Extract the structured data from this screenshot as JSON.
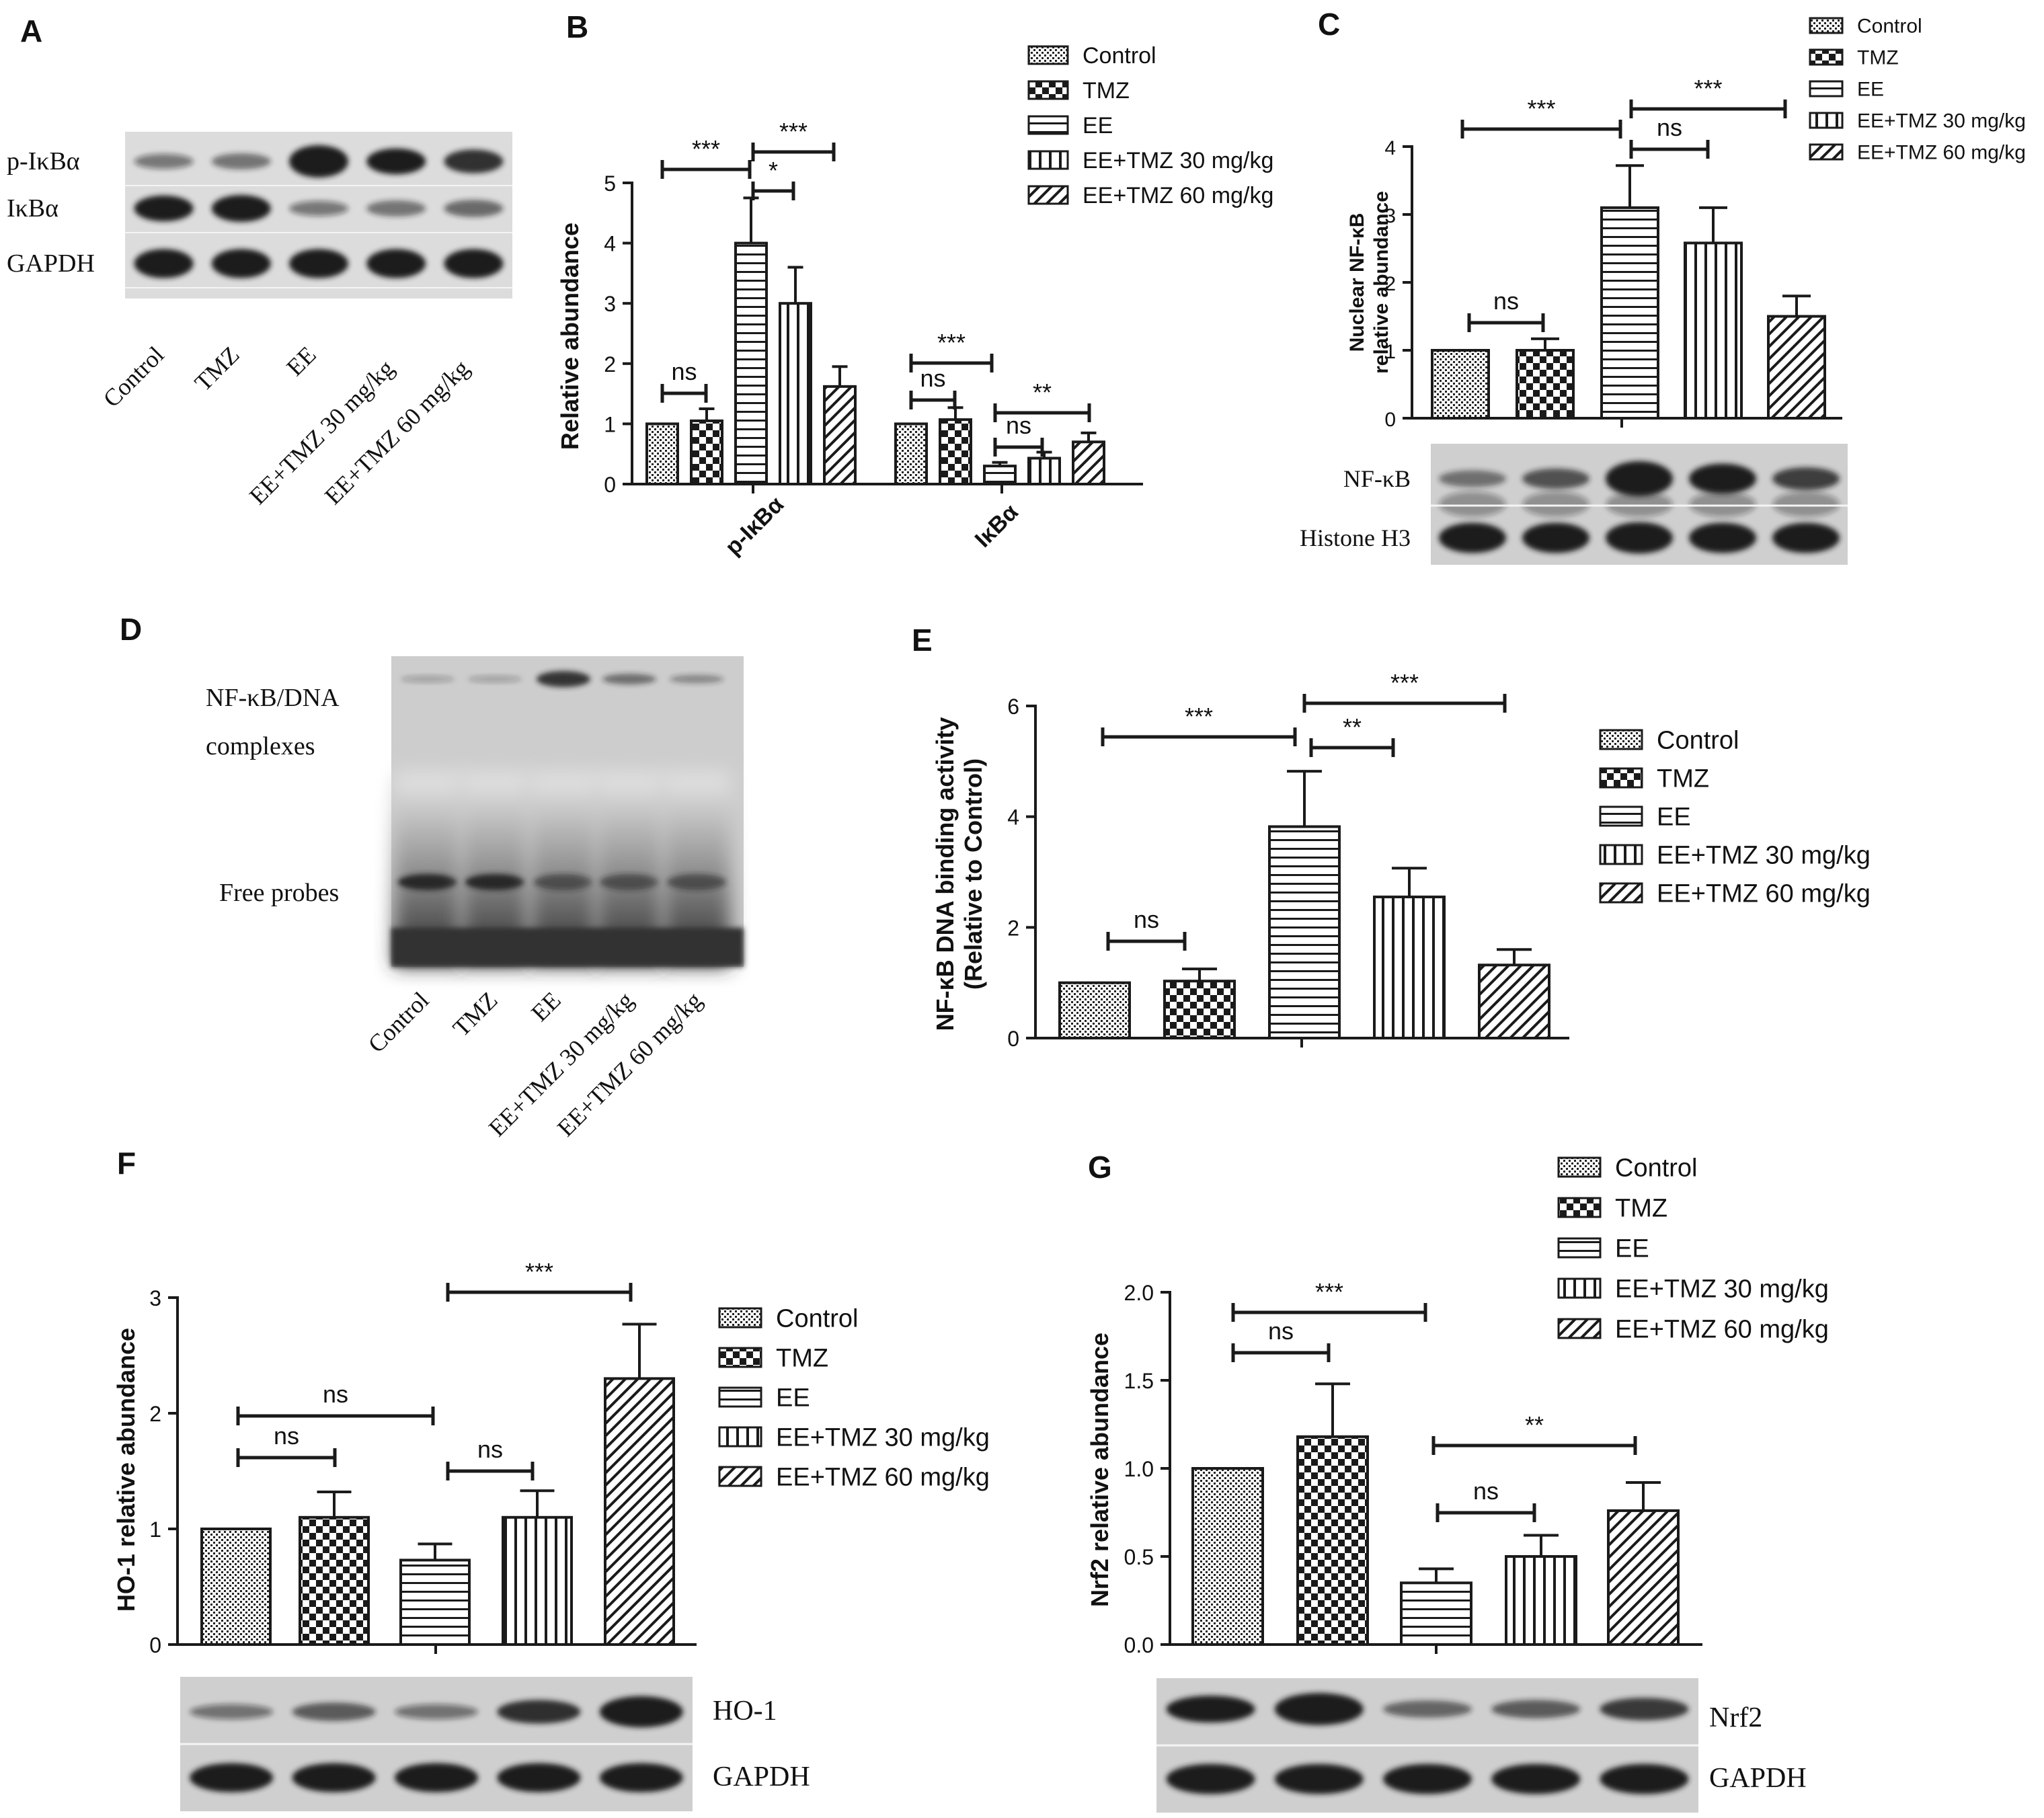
{
  "legend_groups": [
    "Control",
    "TMZ",
    "EE",
    "EE+TMZ 30 mg/kg",
    "EE+TMZ 60 mg/kg"
  ],
  "patterns": [
    "dots",
    "checker",
    "hlines",
    "vlines",
    "diag"
  ],
  "colors": {
    "ink": "#1a1a1a",
    "blot_bg": "#cfcfcf",
    "band": "#1c1c1c"
  },
  "panels": {
    "A": {
      "letter": "A",
      "rows": [
        "p-IκBα",
        "IκBα",
        "GAPDH"
      ],
      "lanes": [
        "Control",
        "TMZ",
        "EE",
        "EE+TMZ 30 mg/kg",
        "EE+TMZ 60 mg/kg"
      ]
    },
    "D": {
      "letter": "D",
      "labels": [
        "NF-κB/DNA",
        "complexes",
        "Free probes"
      ],
      "lanes": [
        "Control",
        "TMZ",
        "EE",
        "EE+TMZ 30 mg/kg",
        "EE+TMZ 60 mg/kg"
      ]
    }
  },
  "chart_data": [
    {
      "id": "B",
      "letter": "B",
      "type": "bar",
      "ylabel": "Relative abundance",
      "ylim": [
        0,
        5
      ],
      "yticks": [
        "0",
        "1",
        "2",
        "3",
        "4",
        "5"
      ],
      "groups": [
        "p-IκBα",
        "IκBα"
      ],
      "series": [
        {
          "name": "Control",
          "values": [
            1.0,
            1.0
          ],
          "errors": [
            0,
            0
          ]
        },
        {
          "name": "TMZ",
          "values": [
            1.05,
            1.07
          ],
          "errors": [
            0.2,
            0.2
          ]
        },
        {
          "name": "EE",
          "values": [
            4.0,
            0.3
          ],
          "errors": [
            0.75,
            0.06
          ]
        },
        {
          "name": "EE+TMZ 30 mg/kg",
          "values": [
            3.0,
            0.43
          ],
          "errors": [
            0.6,
            0.1
          ]
        },
        {
          "name": "EE+TMZ 60 mg/kg",
          "values": [
            1.62,
            0.7
          ],
          "errors": [
            0.33,
            0.15
          ]
        }
      ],
      "significance": [
        "***",
        "***",
        "*",
        "ns",
        "***",
        "ns",
        "**",
        "ns"
      ],
      "legend_position": "top-right"
    },
    {
      "id": "C",
      "letter": "C",
      "type": "bar",
      "ylabel": [
        "Nuclear NF-κB",
        "relative abundance"
      ],
      "ylim": [
        0,
        4
      ],
      "yticks": [
        "0",
        "1",
        "2",
        "3",
        "4"
      ],
      "categories": [
        "Control",
        "TMZ",
        "EE",
        "EE+TMZ 30 mg/kg",
        "EE+TMZ 60 mg/kg"
      ],
      "values": [
        1.0,
        1.0,
        3.1,
        2.58,
        1.5
      ],
      "errors": [
        0,
        0.17,
        0.62,
        0.52,
        0.3
      ],
      "significance": [
        "***",
        "***",
        "ns",
        "ns"
      ],
      "blot_rows": [
        "NF-κB",
        "Histone H3"
      ],
      "legend_position": "top-right"
    },
    {
      "id": "E",
      "letter": "E",
      "type": "bar",
      "ylabel": [
        "NF-κB DNA binding activity",
        "(Relative to Control)"
      ],
      "ylim": [
        0,
        6
      ],
      "yticks": [
        "0",
        "2",
        "4",
        "6"
      ],
      "categories": [
        "Control",
        "TMZ",
        "EE",
        "EE+TMZ 30 mg/kg",
        "EE+TMZ 60 mg/kg"
      ],
      "values": [
        1.0,
        1.03,
        3.82,
        2.55,
        1.32
      ],
      "errors": [
        0,
        0.22,
        1.0,
        0.52,
        0.28
      ],
      "significance": [
        "***",
        "***",
        "**",
        "ns"
      ],
      "legend_position": "right"
    },
    {
      "id": "F",
      "letter": "F",
      "type": "bar",
      "ylabel": "HO-1 relative abundance",
      "ylim": [
        0,
        3
      ],
      "yticks": [
        "0",
        "1",
        "2",
        "3"
      ],
      "categories": [
        "Control",
        "TMZ",
        "EE",
        "EE+TMZ 30 mg/kg",
        "EE+TMZ 60 mg/kg"
      ],
      "values": [
        1.0,
        1.1,
        0.73,
        1.1,
        2.3
      ],
      "errors": [
        0,
        0.22,
        0.14,
        0.23,
        0.47
      ],
      "significance": [
        "***",
        "ns",
        "ns",
        "ns"
      ],
      "blot_rows": [
        "HO-1",
        "GAPDH"
      ],
      "legend_position": "right"
    },
    {
      "id": "G",
      "letter": "G",
      "type": "bar",
      "ylabel": "Nrf2 relative abundance",
      "ylim": [
        0,
        2.0
      ],
      "yticks": [
        "0.0",
        "0.5",
        "1.0",
        "1.5",
        "2.0"
      ],
      "categories": [
        "Control",
        "TMZ",
        "EE",
        "EE+TMZ 30 mg/kg",
        "EE+TMZ 60 mg/kg"
      ],
      "values": [
        1.0,
        1.18,
        0.35,
        0.5,
        0.76
      ],
      "errors": [
        0,
        0.3,
        0.08,
        0.12,
        0.16
      ],
      "significance": [
        "***",
        "ns",
        "**",
        "ns"
      ],
      "blot_rows": [
        "Nrf2",
        "GAPDH"
      ],
      "legend_position": "top-right"
    }
  ]
}
